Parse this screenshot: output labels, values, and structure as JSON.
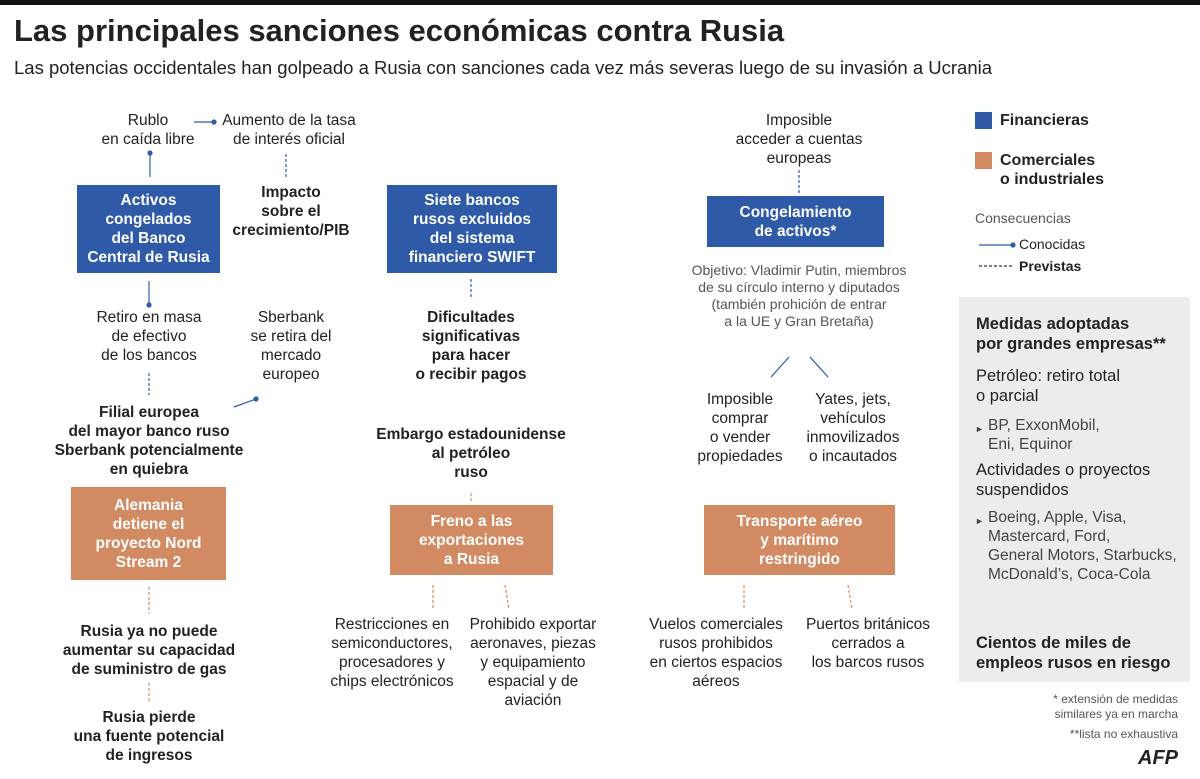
{
  "header": {
    "title": "Las principales sanciones económicas contra Rusia",
    "subtitle": "Las potencias occidentales han golpeado a Rusia con sanciones cada vez más severas luego de su invasión a Ucrania"
  },
  "boxes": [
    "Activos\ncongelados\ndel Banco\nCentral de Rusia",
    "Siete bancos\nrusos excluidos\ndel sistema\nfinanciero SWIFT",
    "Congelamiento\nde activos*",
    "Alemania\ndetiene el\nproyecto Nord\nStream 2",
    "Freno a las\nexportaciones\na Rusia",
    "Transporte  aéreo\ny marítimo\nrestringido"
  ],
  "consequences": [
    "Rublo\nen caída libre",
    "Aumento de la tasa\nde interés oficial",
    "Impacto\nsobre el\ncrecimiento/PIB",
    "Retiro en masa\nde efectivo\nde los bancos",
    "Sberbank\nse retira del\nmercado\neuropeo",
    "Filial europea\ndel mayor banco ruso\nSberbank potencialmente\nen quiebra",
    "Dificultades\nsignificativas\npara hacer\no recibir pagos",
    "Embargo estadounidense\nal petróleo\nruso",
    "Rusia ya no puede\naumentar su capacidad\nde suministro de gas",
    "Rusia pierde\nuna fuente potencial\nde ingresos",
    "Restricciones en\nsemiconductores,\nprocesadores y\nchips electrónicos",
    "Prohibido exportar\naeronaves, piezas\ny equipamiento\nespacial y de\naviación",
    "Imposible\nacceder a cuentas\neuropeas",
    "Objetivo: Vladimir Putin, miembros\nde su círculo interno y diputados\n(también prohición de entrar\na la UE y Gran Bretaña)",
    "Imposible\ncomprar\no vender\npropiedades",
    "Yates, jets,\nvehículos\ninmovilizados\no incautados",
    "Vuelos comerciales\nrusos prohibidos\nen ciertos espacios\naéreos",
    "Puertos británicos\ncerrados a\nlos barcos rusos"
  ],
  "legend": {
    "financial": "Financieras",
    "commercial": "Comerciales\no industriales",
    "consequences_title": "Consecuencias",
    "known": "Conocidas",
    "expected": "Previstas"
  },
  "companies": {
    "title": "Medidas adoptadas\npor grandes empresas**",
    "oil": "Petróleo: retiro total\no parcial",
    "oil_list": "BP, ExxonMobil,\nEni, Equinor",
    "suspended": "Actividades o proyectos\nsuspendidos",
    "suspended_list": "Boeing, Apple, Visa,\nMastercard, Ford,\nGeneral Motors, Starbucks,\nMcDonald’s, Coca-Cola",
    "jobs": "Cientos de miles de\nempleos rusos en riesgo"
  },
  "footnotes": [
    "* extensión de medidas\nsimilares ya en marcha",
    "**lista no exhaustiva"
  ],
  "source": "AFP"
}
